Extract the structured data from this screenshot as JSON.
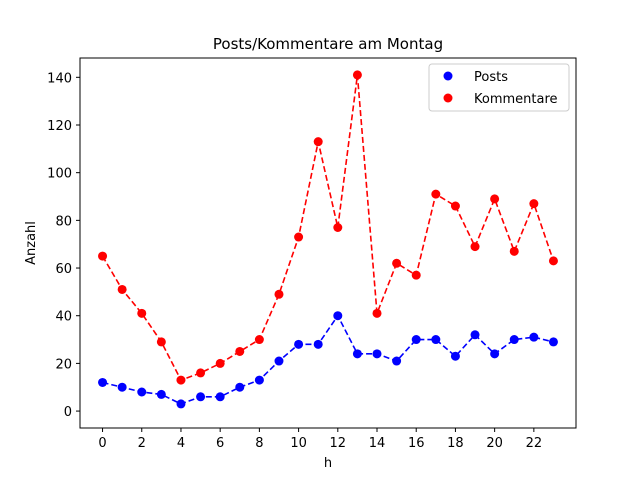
{
  "chart_data": {
    "type": "line",
    "title": "Posts/Kommentare am Montag",
    "xlabel": "h",
    "ylabel": "Anzahl",
    "x": [
      0,
      1,
      2,
      3,
      4,
      5,
      6,
      7,
      8,
      9,
      10,
      11,
      12,
      13,
      14,
      15,
      16,
      17,
      18,
      19,
      20,
      21,
      22,
      23
    ],
    "xlim": [
      -1.15,
      24.15
    ],
    "ylim": [
      -7.1,
      148.1
    ],
    "xticks": [
      "0",
      "2",
      "4",
      "6",
      "8",
      "10",
      "12",
      "14",
      "16",
      "18",
      "20",
      "22"
    ],
    "yticks": [
      "0",
      "20",
      "40",
      "60",
      "80",
      "100",
      "120",
      "140"
    ],
    "grid": false,
    "legend_position": "top-right",
    "series": [
      {
        "name": "Posts",
        "color": "#0000ff",
        "line_style": "dashed",
        "marker": "circle",
        "values": [
          12,
          10,
          8,
          7,
          3,
          6,
          6,
          10,
          13,
          21,
          28,
          28,
          40,
          24,
          24,
          21,
          30,
          30,
          23,
          32,
          24,
          30,
          31,
          29
        ]
      },
      {
        "name": "Kommentare",
        "color": "#ff0000",
        "line_style": "dashed",
        "marker": "circle",
        "values": [
          65,
          51,
          41,
          29,
          13,
          16,
          20,
          25,
          30,
          49,
          73,
          113,
          77,
          141,
          41,
          62,
          57,
          91,
          86,
          69,
          89,
          67,
          87,
          63
        ]
      }
    ]
  }
}
